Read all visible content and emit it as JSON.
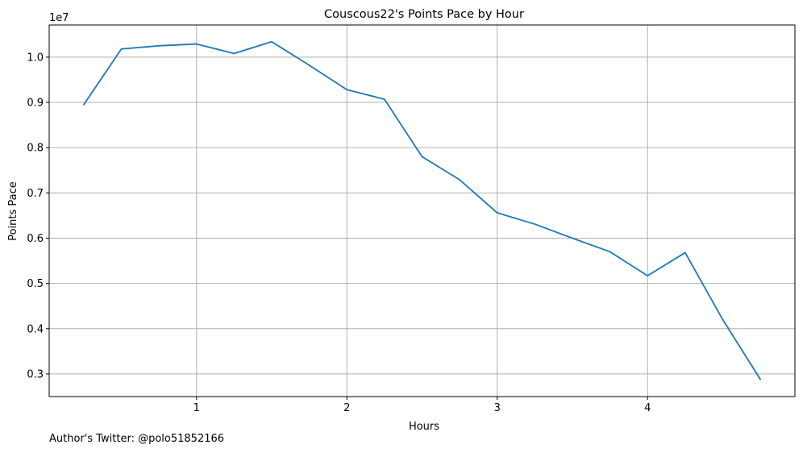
{
  "chart_data": {
    "type": "line",
    "title": "Couscous22's Points Pace by Hour",
    "xlabel": "Hours",
    "ylabel": "Points Pace",
    "y_offset_label": "1e7",
    "x_ticks": [
      1,
      2,
      3,
      4
    ],
    "x_tick_labels": [
      "1",
      "2",
      "3",
      "4"
    ],
    "y_ticks": [
      0.3,
      0.4,
      0.5,
      0.6,
      0.7,
      0.8,
      0.9,
      1.0
    ],
    "y_tick_labels": [
      "0.3",
      "0.4",
      "0.5",
      "0.6",
      "0.7",
      "0.8",
      "0.9",
      "1.0"
    ],
    "xlim": [
      0.02,
      4.98
    ],
    "ylim": [
      0.25,
      1.071
    ],
    "grid": true,
    "series": [
      {
        "color": "#1f77b4",
        "x": [
          0.25,
          0.5,
          0.75,
          1.0,
          1.25,
          1.5,
          1.75,
          2.0,
          2.25,
          2.5,
          2.75,
          3.0,
          3.25,
          3.5,
          3.75,
          4.0,
          4.25,
          4.5,
          4.75
        ],
        "y": [
          0.895,
          1.018,
          1.025,
          1.029,
          1.008,
          1.034,
          0.982,
          0.928,
          0.907,
          0.78,
          0.729,
          0.656,
          0.631,
          0.6,
          0.57,
          0.517,
          0.568,
          0.42,
          0.288
        ]
      }
    ]
  },
  "footer": {
    "text": "Author's Twitter: @polo51852166"
  }
}
